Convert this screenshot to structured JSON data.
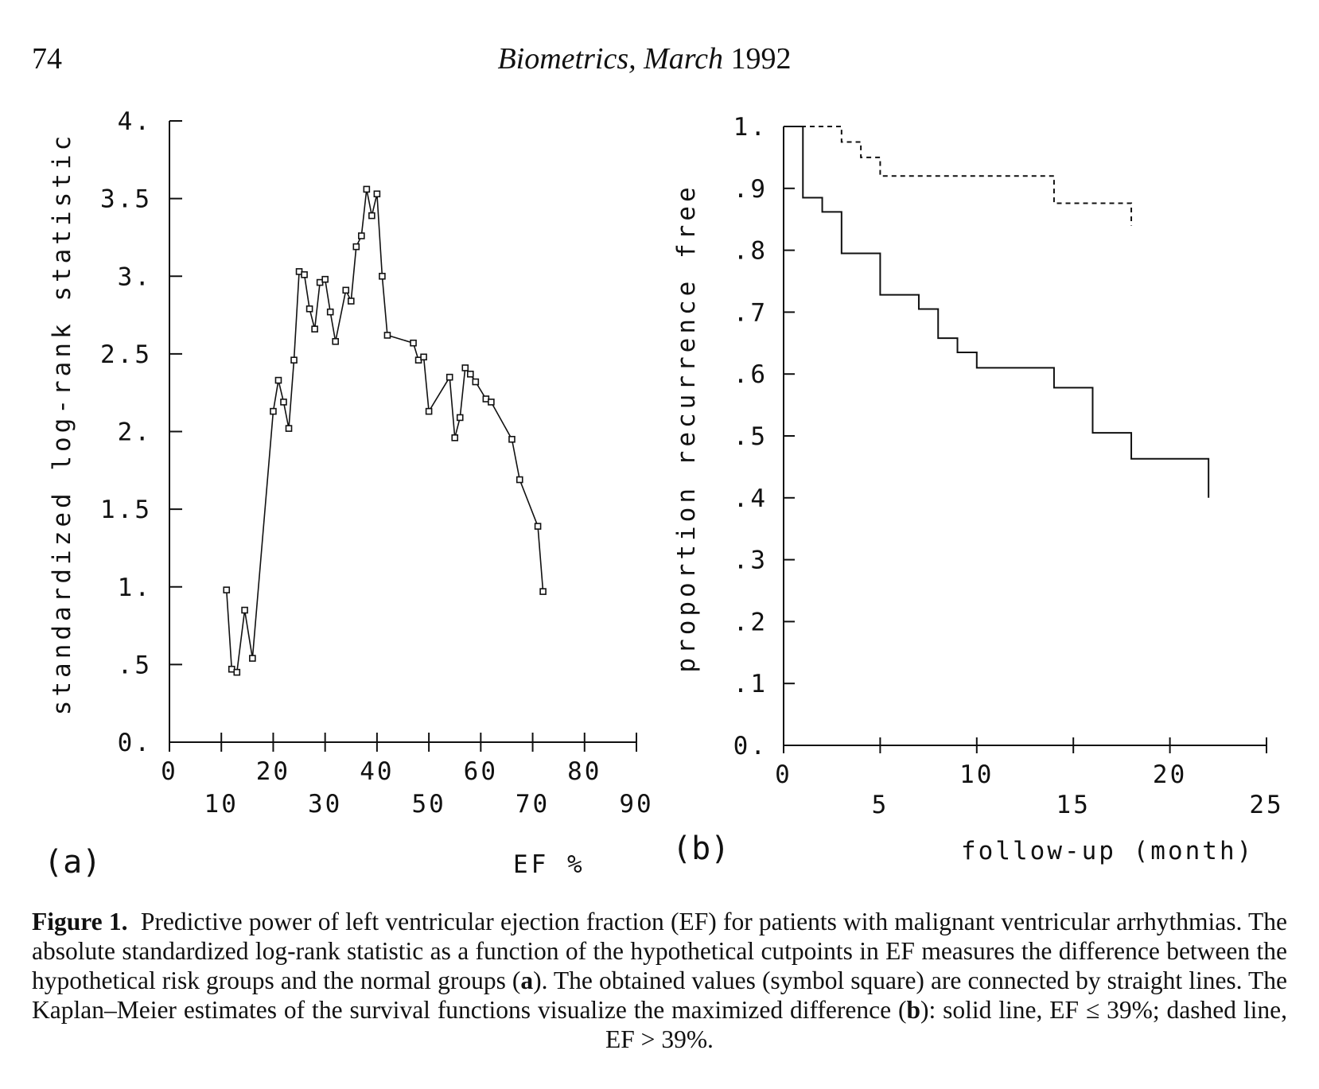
{
  "page": {
    "number": "74",
    "journal_title": "Biometrics,",
    "journal_month": "March",
    "journal_year": "1992"
  },
  "panel_a": {
    "label": "(a)",
    "ylabel": "standardized log-rank statistic",
    "xlabel": "EF %",
    "y_ticks": [
      "0.",
      ".5",
      "1.",
      "1.5",
      "2.",
      "2.5",
      "3.",
      "3.5",
      "4."
    ],
    "x_ticks_upper": [
      "0",
      "20",
      "40",
      "60",
      "80"
    ],
    "x_ticks_lower": [
      "10",
      "30",
      "50",
      "70",
      "90"
    ]
  },
  "panel_b": {
    "label": "(b)",
    "ylabel": "proportion recurrence free",
    "xlabel": "follow-up (month)",
    "y_ticks": [
      "0.",
      ".1",
      ".2",
      ".3",
      ".4",
      ".5",
      ".6",
      ".7",
      ".8",
      ".9",
      "1."
    ],
    "x_ticks_upper": [
      "0",
      "10",
      "20"
    ],
    "x_ticks_lower": [
      "5",
      "15",
      "25"
    ]
  },
  "chart_data": [
    {
      "type": "line",
      "xlim": [
        0,
        90
      ],
      "ylim": [
        0,
        4
      ],
      "grid": false,
      "x": [
        11,
        12,
        13,
        14.5,
        16,
        20,
        21,
        22,
        23,
        24,
        25,
        26,
        27,
        28,
        29,
        30,
        31,
        32,
        34,
        35,
        36,
        37,
        38,
        39,
        40,
        41,
        42,
        47,
        48,
        49,
        50,
        54,
        55,
        56,
        57,
        58,
        59,
        61,
        62,
        66,
        67.5,
        71,
        72
      ],
      "values": [
        0.98,
        0.47,
        0.45,
        0.85,
        0.54,
        2.13,
        2.33,
        2.19,
        2.02,
        2.46,
        3.03,
        3.01,
        2.79,
        2.66,
        2.96,
        2.98,
        2.77,
        2.58,
        2.91,
        2.84,
        3.19,
        3.26,
        3.56,
        3.39,
        3.53,
        3.0,
        2.62,
        2.57,
        2.46,
        2.48,
        2.13,
        2.35,
        1.96,
        2.09,
        2.41,
        2.37,
        2.32,
        2.21,
        2.19,
        1.95,
        1.69,
        1.39,
        0.97
      ]
    },
    {
      "type": "line",
      "xlim": [
        0,
        25
      ],
      "ylim": [
        0,
        1
      ],
      "grid": false,
      "series": [
        {
          "style": "solid",
          "x": [
            0,
            1,
            1,
            2,
            2,
            3,
            3,
            5,
            5,
            7,
            7,
            8,
            8,
            9,
            9,
            10,
            10,
            14,
            14,
            16,
            16,
            18,
            18,
            22,
            22
          ],
          "values": [
            1,
            1,
            0.885,
            0.885,
            0.862,
            0.862,
            0.795,
            0.795,
            0.728,
            0.728,
            0.705,
            0.705,
            0.658,
            0.658,
            0.635,
            0.635,
            0.61,
            0.61,
            0.578,
            0.578,
            0.505,
            0.505,
            0.463,
            0.463,
            0.4
          ]
        },
        {
          "style": "dashed",
          "x": [
            0,
            3,
            3,
            4,
            4,
            5,
            5,
            6,
            6,
            14,
            14,
            18,
            18
          ],
          "values": [
            1,
            1,
            0.975,
            0.975,
            0.95,
            0.95,
            0.92,
            0.92,
            0.92,
            0.92,
            0.876,
            0.876,
            0.84
          ]
        }
      ]
    }
  ],
  "caption": {
    "label": "Figure 1.",
    "part1": "Predictive power of left ventricular ejection fraction (EF) for patients with malignant ventricular arrhythmias. The absolute standardized log-rank statistic as a function of the hypothetical cutpoints in EF measures the difference between the hypothetical risk groups and the normal groups (",
    "bold_a": "a",
    "part2": "). The obtained values (symbol square) are connected by straight lines. The Kaplan–Meier estimates of the survival functions visualize the maximized difference (",
    "bold_b": "b",
    "part3": "): solid line, EF ≤ 39%; dashed line, EF > 39%."
  }
}
